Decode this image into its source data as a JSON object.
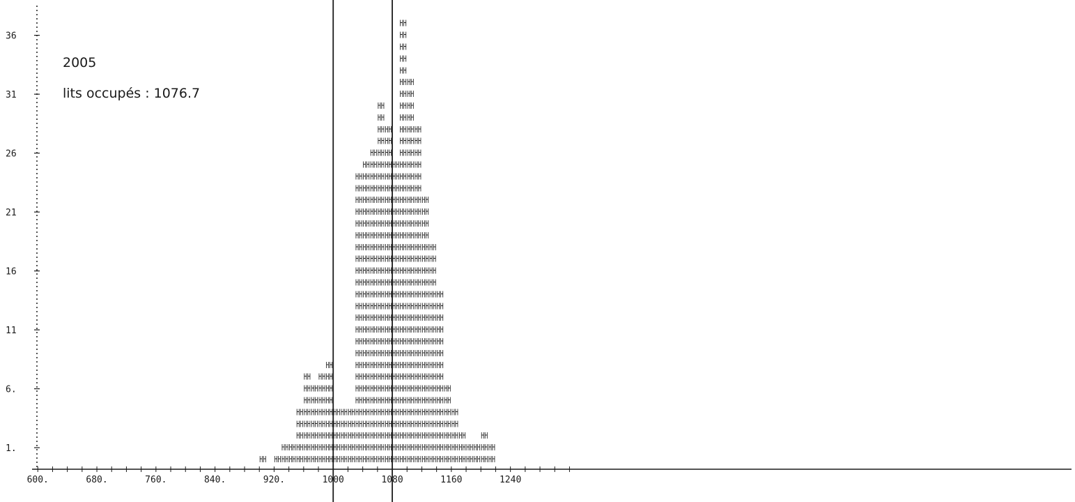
{
  "chart_data": {
    "type": "bar",
    "title": "",
    "xlabel": "",
    "ylabel": "",
    "annotations": {
      "year": "2005",
      "occupancy_text": "lits occupés : 1076.7"
    },
    "x_ticks": [
      "600.",
      "680.",
      "760.",
      "840.",
      "920.",
      "1000",
      "1080",
      "1160",
      "1240"
    ],
    "x_tick_values": [
      600,
      680,
      760,
      840,
      920,
      1000,
      1080,
      1160,
      1240
    ],
    "y_ticks": [
      "1.",
      "6.",
      "11",
      "16",
      "21",
      "26",
      "31",
      "36"
    ],
    "y_tick_values": [
      1,
      6,
      11,
      16,
      21,
      26,
      31,
      36
    ],
    "xlim": [
      596,
      1340
    ],
    "ylim": [
      0,
      40
    ],
    "bin_width": 10,
    "bins": [
      {
        "x": 900,
        "count": 1
      },
      {
        "x": 920,
        "count": 1
      },
      {
        "x": 930,
        "count": 2
      },
      {
        "x": 940,
        "count": 2
      },
      {
        "x": 950,
        "count": 5
      },
      {
        "x": 960,
        "count": 8
      },
      {
        "x": 970,
        "count": 7
      },
      {
        "x": 980,
        "count": 8
      },
      {
        "x": 990,
        "count": 9
      },
      {
        "x": 1000,
        "count": 5
      },
      {
        "x": 1010,
        "count": 5
      },
      {
        "x": 1020,
        "count": 5
      },
      {
        "x": 1030,
        "count": 25
      },
      {
        "x": 1040,
        "count": 26
      },
      {
        "x": 1050,
        "count": 27
      },
      {
        "x": 1060,
        "count": 31
      },
      {
        "x": 1070,
        "count": 29
      },
      {
        "x": 1080,
        "count": 26
      },
      {
        "x": 1090,
        "count": 38
      },
      {
        "x": 1100,
        "count": 33
      },
      {
        "x": 1110,
        "count": 29
      },
      {
        "x": 1120,
        "count": 23
      },
      {
        "x": 1130,
        "count": 19
      },
      {
        "x": 1140,
        "count": 15
      },
      {
        "x": 1150,
        "count": 7
      },
      {
        "x": 1160,
        "count": 5
      },
      {
        "x": 1170,
        "count": 3
      },
      {
        "x": 1180,
        "count": 2
      },
      {
        "x": 1190,
        "count": 2
      },
      {
        "x": 1200,
        "count": 3
      },
      {
        "x": 1210,
        "count": 2
      }
    ],
    "reference_lines": [
      1000,
      1080
    ],
    "bar_glyph": "HH",
    "colors": {
      "ink": "#1a1a1a",
      "background": "#ffffff"
    },
    "grid": false
  }
}
